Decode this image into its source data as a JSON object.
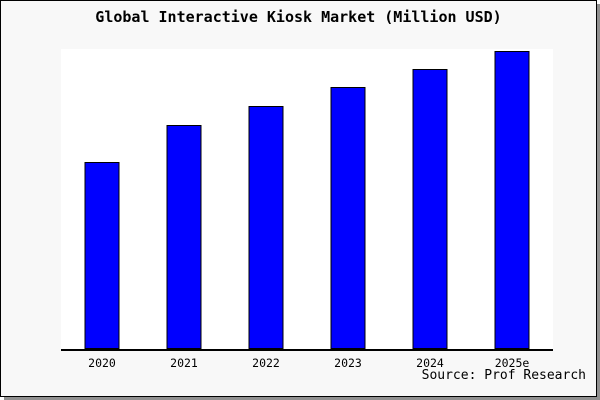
{
  "window": {
    "background": "#f8f8f8",
    "frame_border_color": "#000000",
    "shadow_color": "#909090"
  },
  "title": "Global Interactive Kiosk Market (Million USD)",
  "source_note": "Source: Prof Research",
  "chart_data": {
    "type": "bar",
    "title": "Global Interactive Kiosk Market (Million USD)",
    "categories": [
      "2020",
      "2021",
      "2022",
      "2023",
      "2024",
      "2025e"
    ],
    "values": [
      62.8,
      75.1,
      81.4,
      87.7,
      94.0,
      100
    ],
    "values_estimated": true,
    "value_scale_note": "No y-axis or data labels shown; values are relative bar heights normalized so the tallest bar (2025e) = 100.",
    "xlabel": "",
    "ylabel": "",
    "ylim": [
      0,
      100.6
    ],
    "grid": false,
    "legend": "none",
    "y_axis": "hidden",
    "bar_color": "#0000ff",
    "bar_border_color": "#000000",
    "plot_background": "#ffffff",
    "axis_line_color": "#000000"
  }
}
